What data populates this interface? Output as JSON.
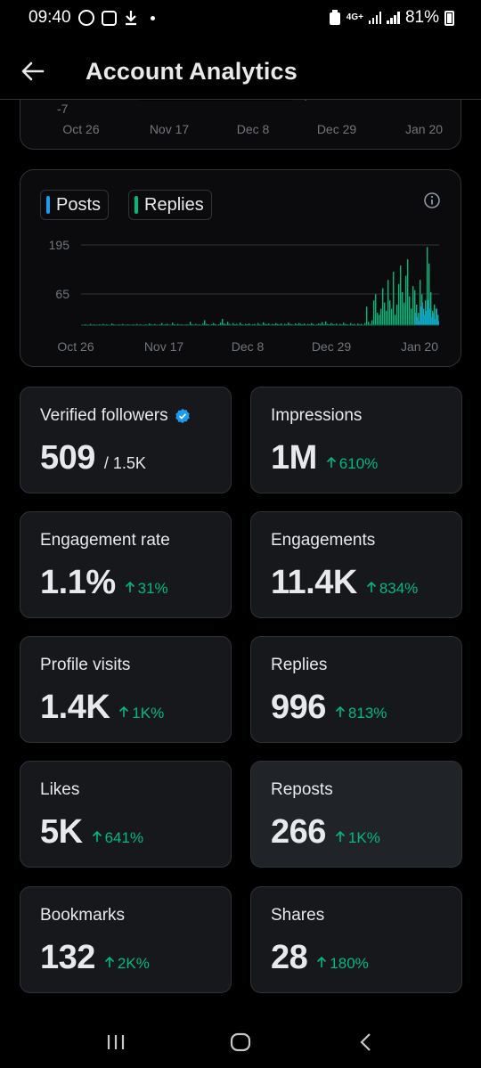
{
  "status_bar": {
    "time": "09:40",
    "network": "4G+",
    "battery": "81%"
  },
  "header": {
    "title": "Account Analytics",
    "back_icon": "arrow-left-icon"
  },
  "partial_chart": {
    "y_tick": "-7",
    "x_labels": [
      "Oct 26",
      "Nov 17",
      "Dec 8",
      "Dec 29",
      "Jan 20"
    ]
  },
  "chart_data": {
    "type": "bar",
    "legend": [
      {
        "name": "Posts",
        "color": "#1d9bf0"
      },
      {
        "name": "Replies",
        "color": "#00ba7c"
      }
    ],
    "y_ticks": [
      "195",
      "65"
    ],
    "x_labels": [
      "Oct 26",
      "Nov 17",
      "Dec 8",
      "Dec 29",
      "Jan 20"
    ],
    "ylim": [
      0,
      195
    ],
    "grid": true,
    "series": [
      {
        "name": "Replies",
        "values": [
          1,
          0,
          2,
          1,
          0,
          3,
          1,
          2,
          0,
          1,
          2,
          1,
          3,
          0,
          2,
          1,
          1,
          4,
          2,
          1,
          0,
          2,
          1,
          3,
          1,
          0,
          2,
          1,
          1,
          2,
          0,
          3,
          1,
          2,
          1,
          0,
          2,
          1,
          4,
          2,
          1,
          3,
          1,
          0,
          2,
          5,
          1,
          2,
          3,
          1,
          0,
          6,
          2,
          1,
          3,
          1,
          2,
          0,
          1,
          2,
          1,
          8,
          2,
          1,
          3,
          0,
          2,
          1,
          4,
          12,
          3,
          2,
          1,
          2,
          5,
          3,
          1,
          2,
          6,
          15,
          4,
          2,
          8,
          3,
          1,
          5,
          2,
          3,
          1,
          6,
          2,
          1,
          3,
          2,
          4,
          1,
          2,
          3,
          1,
          5,
          2,
          1,
          7,
          3,
          2,
          4,
          1,
          3,
          2,
          5,
          3,
          2,
          4,
          1,
          3,
          2,
          6,
          3,
          2,
          1,
          4,
          2,
          5,
          3,
          2,
          4,
          1,
          3,
          2,
          5,
          3,
          1,
          2,
          4,
          3,
          7,
          2,
          9,
          3,
          2,
          5,
          3,
          2,
          4,
          1,
          3,
          2,
          6,
          3,
          2,
          1,
          5,
          2,
          3,
          1,
          4,
          2,
          3,
          1,
          5,
          45,
          8,
          3,
          12,
          60,
          75,
          30,
          25,
          40,
          90,
          55,
          35,
          110,
          60,
          40,
          130,
          25,
          50,
          100,
          145,
          80,
          55,
          120,
          160,
          70,
          40,
          95,
          85,
          50,
          30,
          110,
          75,
          40,
          60,
          190,
          150,
          80,
          35,
          50,
          40,
          25
        ]
      },
      {
        "name": "Posts",
        "values": [
          0,
          0,
          0,
          0,
          0,
          0,
          0,
          0,
          0,
          0,
          0,
          0,
          0,
          0,
          0,
          0,
          0,
          0,
          0,
          0,
          0,
          0,
          0,
          0,
          0,
          0,
          0,
          0,
          0,
          0,
          0,
          0,
          0,
          0,
          0,
          0,
          0,
          0,
          0,
          0,
          0,
          0,
          0,
          0,
          0,
          0,
          0,
          0,
          0,
          0,
          0,
          0,
          0,
          0,
          0,
          0,
          0,
          0,
          0,
          0,
          0,
          0,
          0,
          0,
          0,
          0,
          0,
          0,
          0,
          0,
          0,
          0,
          0,
          0,
          0,
          0,
          0,
          0,
          0,
          0,
          0,
          0,
          0,
          0,
          0,
          0,
          0,
          0,
          0,
          0,
          0,
          0,
          0,
          0,
          0,
          0,
          0,
          0,
          0,
          0,
          0,
          0,
          0,
          0,
          0,
          0,
          0,
          0,
          0,
          0,
          0,
          0,
          0,
          0,
          0,
          0,
          0,
          0,
          0,
          0,
          0,
          0,
          0,
          0,
          0,
          0,
          0,
          0,
          0,
          0,
          0,
          0,
          0,
          0,
          0,
          0,
          0,
          0,
          0,
          0,
          0,
          0,
          0,
          0,
          0,
          0,
          0,
          0,
          0,
          0,
          0,
          0,
          0,
          0,
          0,
          0,
          0,
          0,
          0,
          0,
          0,
          0,
          0,
          0,
          0,
          0,
          0,
          0,
          0,
          0,
          0,
          0,
          0,
          0,
          0,
          0,
          0,
          0,
          0,
          0,
          0,
          0,
          0,
          0,
          0,
          0,
          0,
          30,
          20,
          10,
          45,
          55,
          25,
          35,
          60,
          40,
          20,
          30,
          15,
          40,
          10
        ]
      }
    ]
  },
  "stats": [
    {
      "label": "Verified followers",
      "value": "509",
      "sub": "/ 1.5K",
      "change": "",
      "verified": true
    },
    {
      "label": "Impressions",
      "value": "1M",
      "sub": "",
      "change": "610%"
    },
    {
      "label": "Engagement rate",
      "value": "1.1%",
      "sub": "",
      "change": "31%"
    },
    {
      "label": "Engagements",
      "value": "11.4K",
      "sub": "",
      "change": "834%"
    },
    {
      "label": "Profile visits",
      "value": "1.4K",
      "sub": "",
      "change": "1K%"
    },
    {
      "label": "Replies",
      "value": "996",
      "sub": "",
      "change": "813%"
    },
    {
      "label": "Likes",
      "value": "5K",
      "sub": "",
      "change": "641%"
    },
    {
      "label": "Reposts",
      "value": "266",
      "sub": "",
      "change": "1K%"
    },
    {
      "label": "Bookmarks",
      "value": "132",
      "sub": "",
      "change": "2K%"
    },
    {
      "label": "Shares",
      "value": "28",
      "sub": "",
      "change": "180%"
    }
  ],
  "colors": {
    "background": "#000000",
    "card": "#16181c",
    "positive": "#00ba7c",
    "verified": "#1d9bf0"
  }
}
